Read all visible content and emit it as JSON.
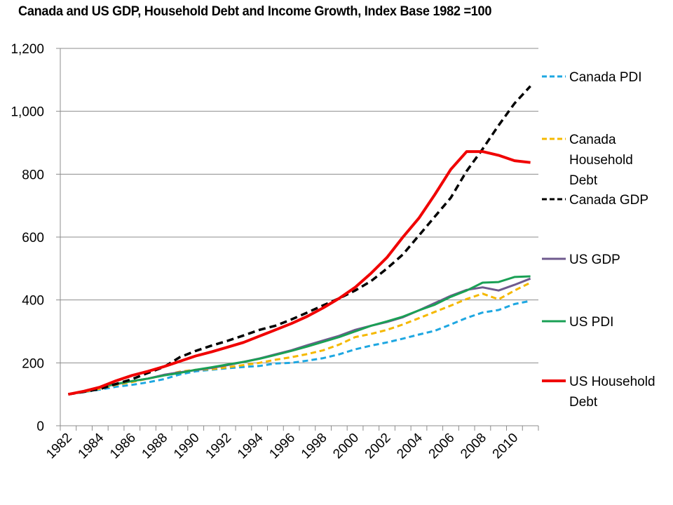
{
  "chart_data": {
    "type": "line",
    "title": "Canada and US GDP, Household Debt and Income Growth, Index Base 1982 =100",
    "xlabel": "",
    "ylabel": "",
    "ylim": [
      0,
      1200
    ],
    "yticks": [
      0,
      200,
      400,
      600,
      800,
      1000,
      1200
    ],
    "ytick_labels": [
      "0",
      "200",
      "400",
      "600",
      "800",
      "1,000",
      "1,200"
    ],
    "grid": true,
    "legend_position": "right",
    "x": [
      1982,
      1983,
      1984,
      1985,
      1986,
      1987,
      1988,
      1989,
      1990,
      1991,
      1992,
      1993,
      1994,
      1995,
      1996,
      1997,
      1998,
      1999,
      2000,
      2001,
      2002,
      2003,
      2004,
      2005,
      2006,
      2007,
      2008,
      2009,
      2010,
      2011
    ],
    "xtick_labels": [
      "1982",
      "1984",
      "1986",
      "1988",
      "1990",
      "1992",
      "1994",
      "1996",
      "1998",
      "2000",
      "2002",
      "2004",
      "2006",
      "2008",
      "2010"
    ],
    "series": [
      {
        "name": "Canada PDI",
        "color": "#1ea7e1",
        "style": "dashed",
        "values": [
          100,
          107,
          115,
          124,
          130,
          138,
          148,
          163,
          173,
          178,
          183,
          187,
          190,
          198,
          200,
          207,
          215,
          227,
          243,
          255,
          265,
          277,
          290,
          302,
          322,
          343,
          360,
          368,
          387,
          397
        ]
      },
      {
        "name": "Canada Household Debt",
        "color": "#f5b800",
        "style": "dashed",
        "values": [
          100,
          108,
          118,
          130,
          139,
          150,
          160,
          172,
          178,
          180,
          186,
          193,
          200,
          210,
          218,
          228,
          240,
          258,
          282,
          292,
          305,
          322,
          342,
          362,
          382,
          403,
          420,
          402,
          430,
          455
        ]
      },
      {
        "name": "Canada GDP",
        "color": "#000000",
        "style": "dashed",
        "values": [
          100,
          108,
          117,
          133,
          148,
          168,
          187,
          218,
          238,
          255,
          270,
          287,
          305,
          318,
          338,
          360,
          383,
          405,
          430,
          460,
          500,
          545,
          605,
          665,
          725,
          810,
          880,
          955,
          1025,
          1080
        ]
      },
      {
        "name": "US GDP",
        "color": "#6f5a8e",
        "style": "solid",
        "values": [
          100,
          110,
          122,
          132,
          142,
          150,
          162,
          170,
          177,
          184,
          193,
          203,
          214,
          227,
          240,
          256,
          271,
          286,
          305,
          318,
          330,
          345,
          367,
          390,
          413,
          432,
          440,
          430,
          448,
          468
        ]
      },
      {
        "name": "US PDI",
        "color": "#1aa055",
        "style": "solid",
        "values": [
          100,
          110,
          123,
          133,
          142,
          150,
          160,
          168,
          178,
          186,
          195,
          203,
          213,
          225,
          238,
          252,
          267,
          282,
          300,
          318,
          332,
          347,
          367,
          385,
          410,
          430,
          455,
          457,
          473,
          475
        ]
      },
      {
        "name": "US Household Debt",
        "color": "#f00000",
        "style": "solid",
        "values": [
          100,
          110,
          123,
          143,
          160,
          173,
          188,
          205,
          222,
          235,
          250,
          265,
          285,
          305,
          325,
          348,
          375,
          405,
          440,
          485,
          535,
          600,
          660,
          735,
          815,
          872,
          872,
          860,
          843,
          837
        ]
      }
    ]
  }
}
